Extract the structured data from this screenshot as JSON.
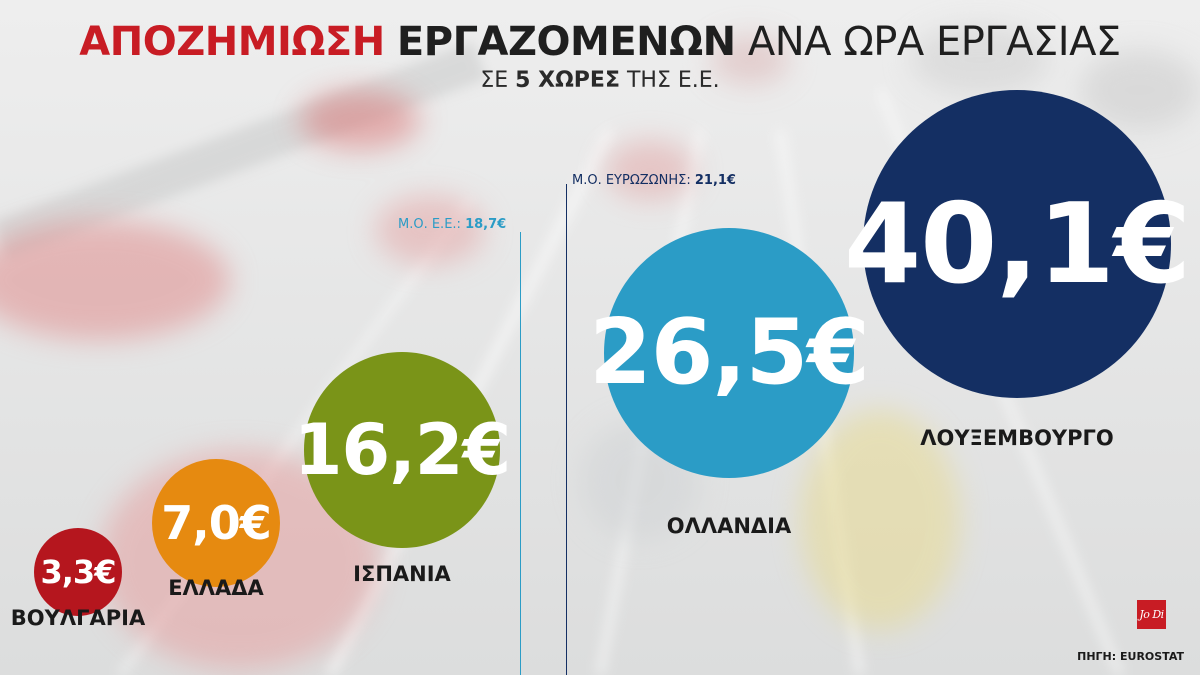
{
  "header": {
    "title_part1": "ΑΠΟΖΗΜΙΩΣΗ",
    "title_part2": "ΕΡΓΑΖΟΜΕΝΩΝ",
    "title_part3": "ΑΝΑ ΩΡΑ ΕΡΓΑΣΙΑΣ",
    "subtitle_pre": "ΣΕ",
    "subtitle_bold": "5 ΧΩΡΕΣ",
    "subtitle_post": "ΤΗΣ Ε.Ε."
  },
  "chart_data": {
    "type": "bubble",
    "unit": "€",
    "categories": [
      "ΒΟΥΛΓΑΡΙΑ",
      "ΕΛΛΑΔΑ",
      "ΙΣΠΑΝΙΑ",
      "ΟΛΛΑΝΔΙΑ",
      "ΛΟΥΞΕΜΒΟΥΡΓΟ"
    ],
    "values": [
      3.3,
      7.0,
      16.2,
      26.5,
      40.1
    ],
    "value_labels": [
      "3,3€",
      "7,0€",
      "16,2€",
      "26,5€",
      "40,1€"
    ],
    "colors": [
      "#b5161e",
      "#e68a10",
      "#7a9418",
      "#2b9cc6",
      "#142f63"
    ],
    "reference_lines": [
      {
        "prefix": "Μ.Ο. Ε.Ε.:",
        "value_label": "18,7€",
        "value": 18.7,
        "color": "#2b9cc6"
      },
      {
        "prefix": "Μ.Ο. ΕΥΡΩΖΩΝΗΣ:",
        "value_label": "21,1€",
        "value": 21.1,
        "color": "#142f63"
      }
    ]
  },
  "footer": {
    "logo_text": "Jo Di",
    "source": "ΠΗΓΗ: EUROSTAT"
  }
}
